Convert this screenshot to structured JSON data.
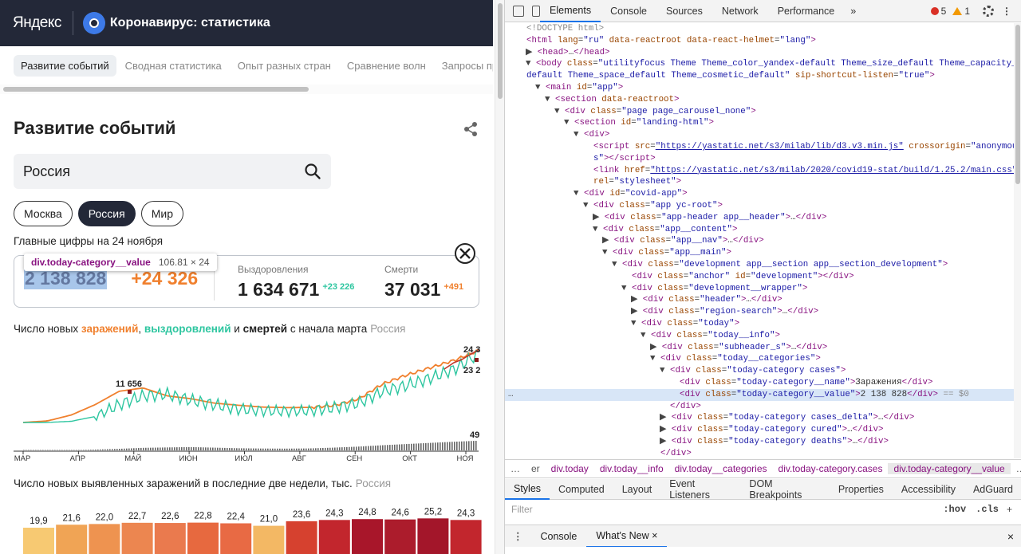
{
  "site": {
    "yandex_logo": "Яндекс",
    "title": "Коронавирус: статистика"
  },
  "tabs": [
    "Развитие событий",
    "Сводная статистика",
    "Опыт разных стран",
    "Сравнение волн",
    "Запросы про об"
  ],
  "heading": "Развитие событий",
  "search": {
    "value": "Россия"
  },
  "regions": [
    "Москва",
    "Россия",
    "Мир"
  ],
  "main_figures": "Главные цифры на 24 ноября",
  "today": {
    "cases": {
      "name": "",
      "value": "2 138 828",
      "delta": "+24 326"
    },
    "cured": {
      "name": "Выздоровления",
      "value": "1 634 671",
      "delta": "+23 226"
    },
    "deaths": {
      "name": "Смерти",
      "value": "37 031",
      "delta": "+491"
    }
  },
  "tooltip": {
    "name": "div.today-category__value",
    "size": "106.81 × 24"
  },
  "chart1_title": {
    "prefix": "Число новых ",
    "cases": "заражений",
    "sep1": ", ",
    "cured": "выздоровлений",
    "sep2": " и ",
    "deaths": "смертей",
    "suffix": " с начала марта",
    "region": "Россия"
  },
  "chart2_title": {
    "text": "Число новых выявленных заражений в последние две недели, тыс.",
    "region": "Россия"
  },
  "colors": {
    "cases": "#f0802e",
    "cured": "#2ec6a0",
    "deaths": "#c0392b",
    "bar_low": "#f7c972",
    "bar_high": "#a3162a"
  },
  "chart_data": [
    {
      "type": "line",
      "x_ticks": [
        "МАР",
        "АПР",
        "МАЙ",
        "ИЮН",
        "ИЮЛ",
        "АВГ",
        "СЕН",
        "ОКТ",
        "НОЯ"
      ],
      "annotations": [
        {
          "label": "11 656"
        },
        {
          "label": "24 3"
        },
        {
          "label": "23 2"
        },
        {
          "label": "49"
        }
      ],
      "series": [
        {
          "name": "заражений",
          "values": [
            0,
            500,
            2500,
            6000,
            10500,
            11656,
            9000,
            8000,
            6500,
            5800,
            5200,
            5000,
            5100,
            5800,
            8000,
            13000,
            16000,
            18500,
            21000,
            24326
          ]
        },
        {
          "name": "выздоровлений",
          "values": [
            0,
            0,
            400,
            2000,
            6000,
            9000,
            9500,
            7500,
            6000,
            4500,
            4000,
            3800,
            4000,
            5000,
            6500,
            10500,
            12500,
            15000,
            18000,
            23226
          ]
        },
        {
          "name": "смертей",
          "values": [
            0,
            0,
            5,
            40,
            80,
            130,
            150,
            170,
            140,
            110,
            95,
            90,
            100,
            140,
            190,
            260,
            320,
            380,
            440,
            491
          ]
        }
      ]
    },
    {
      "type": "bar",
      "values": [
        19.9,
        21.6,
        22.0,
        22.7,
        22.6,
        22.8,
        22.4,
        21.0,
        23.6,
        24.3,
        24.8,
        24.6,
        25.2,
        24.3
      ],
      "labels": [
        "19,9",
        "21,6",
        "22,0",
        "22,7",
        "22,6",
        "22,8",
        "22,4",
        "21,0",
        "23,6",
        "24,3",
        "24,8",
        "24,6",
        "25,2",
        "24,3"
      ]
    }
  ],
  "devtools": {
    "tabs": [
      "Elements",
      "Console",
      "Sources",
      "Network",
      "Performance"
    ],
    "more": "»",
    "errors": "5",
    "warnings": "1",
    "dom_lines": [
      {
        "i": 0,
        "t": "",
        "h": "<span class='cm'>&lt;!DOCTYPE html&gt;</span>"
      },
      {
        "i": 0,
        "t": "",
        "h": "<span class='tg'>&lt;html</span> <span class='at'>lang</span>=<span class='av'>\"ru\"</span> <span class='at'>data-reactroot</span> <span class='at'>data-react-helmet</span>=<span class='av'>\"lang\"</span><span class='tg'>&gt;</span>"
      },
      {
        "i": 1,
        "t": "▶",
        "h": "<span class='tg'>&lt;head&gt;</span>…<span class='tg'>&lt;/head&gt;</span>"
      },
      {
        "i": 1,
        "t": "▼",
        "h": "<span class='tg'>&lt;body</span> <span class='at'>class</span>=<span class='av'>\"utilityfocus Theme Theme_color_yandex-default Theme_size_default Theme_capacity_</span>"
      },
      {
        "i": 0,
        "t": "",
        "h": "<span class='av'>default Theme_space_default Theme_cosmetic_default\"</span> <span class='at'>sip-shortcut-listen</span>=<span class='av'>\"true\"</span><span class='tg'>&gt;</span>"
      },
      {
        "i": 2,
        "t": "▼",
        "h": "<span class='tg'>&lt;main</span> <span class='at'>id</span>=<span class='av'>\"app\"</span><span class='tg'>&gt;</span>"
      },
      {
        "i": 3,
        "t": "▼",
        "h": "<span class='tg'>&lt;section</span> <span class='at'>data-reactroot</span><span class='tg'>&gt;</span>"
      },
      {
        "i": 4,
        "t": "▼",
        "h": "<span class='tg'>&lt;div</span> <span class='at'>class</span>=<span class='av'>\"page page_carousel_none\"</span><span class='tg'>&gt;</span>"
      },
      {
        "i": 5,
        "t": "▼",
        "h": "<span class='tg'>&lt;section</span> <span class='at'>id</span>=<span class='av'>\"landing-html\"</span><span class='tg'>&gt;</span>"
      },
      {
        "i": 6,
        "t": "▼",
        "h": "<span class='tg'>&lt;div&gt;</span>"
      },
      {
        "i": 7,
        "t": "",
        "h": "<span class='tg'>&lt;script</span> <span class='at'>src</span>=<span class='lk'>\"https://yastatic.net/s3/milab/lib/d3.v3.min.js\"</span> <span class='at'>crossorigin</span>=<span class='av'>\"anonymou</span>"
      },
      {
        "i": 7,
        "t": "",
        "h": "<span class='av'>s\"</span><span class='tg'>&gt;&lt;/script&gt;</span>"
      },
      {
        "i": 7,
        "t": "",
        "h": "<span class='tg'>&lt;link</span> <span class='at'>href</span>=<span class='lk'>\"https://yastatic.net/s3/milab/2020/covid19-stat/build/1.25.2/main.css\"</span>"
      },
      {
        "i": 7,
        "t": "",
        "h": "<span class='at'>rel</span>=<span class='av'>\"stylesheet\"</span><span class='tg'>&gt;</span>"
      },
      {
        "i": 6,
        "t": "▼",
        "h": "<span class='tg'>&lt;div</span> <span class='at'>id</span>=<span class='av'>\"covid-app\"</span><span class='tg'>&gt;</span>"
      },
      {
        "i": 7,
        "t": "▼",
        "h": "<span class='tg'>&lt;div</span> <span class='at'>class</span>=<span class='av'>\"app yc-root\"</span><span class='tg'>&gt;</span>"
      },
      {
        "i": 8,
        "t": "▶",
        "h": "<span class='tg'>&lt;div</span> <span class='at'>class</span>=<span class='av'>\"app-header app__header\"</span><span class='tg'>&gt;</span>…<span class='tg'>&lt;/div&gt;</span>"
      },
      {
        "i": 8,
        "t": "▼",
        "h": "<span class='tg'>&lt;div</span> <span class='at'>class</span>=<span class='av'>\"app__content\"</span><span class='tg'>&gt;</span>"
      },
      {
        "i": 9,
        "t": "▶",
        "h": "<span class='tg'>&lt;div</span> <span class='at'>class</span>=<span class='av'>\"app__nav\"</span><span class='tg'>&gt;</span>…<span class='tg'>&lt;/div&gt;</span>"
      },
      {
        "i": 9,
        "t": "▼",
        "h": "<span class='tg'>&lt;div</span> <span class='at'>class</span>=<span class='av'>\"app__main\"</span><span class='tg'>&gt;</span>"
      },
      {
        "i": 10,
        "t": "▼",
        "h": "<span class='tg'>&lt;div</span> <span class='at'>class</span>=<span class='av'>\"development app__section app__section_development\"</span><span class='tg'>&gt;</span>"
      },
      {
        "i": 11,
        "t": "",
        "h": "<span class='tg'>&lt;div</span> <span class='at'>class</span>=<span class='av'>\"anchor\"</span> <span class='at'>id</span>=<span class='av'>\"development\"</span><span class='tg'>&gt;&lt;/div&gt;</span>"
      },
      {
        "i": 11,
        "t": "▼",
        "h": "<span class='tg'>&lt;div</span> <span class='at'>class</span>=<span class='av'>\"development__wrapper\"</span><span class='tg'>&gt;</span>"
      },
      {
        "i": 12,
        "t": "▶",
        "h": "<span class='tg'>&lt;div</span> <span class='at'>class</span>=<span class='av'>\"header\"</span><span class='tg'>&gt;</span>…<span class='tg'>&lt;/div&gt;</span>"
      },
      {
        "i": 12,
        "t": "▶",
        "h": "<span class='tg'>&lt;div</span> <span class='at'>class</span>=<span class='av'>\"region-search\"</span><span class='tg'>&gt;</span>…<span class='tg'>&lt;/div&gt;</span>"
      },
      {
        "i": 12,
        "t": "▼",
        "h": "<span class='tg'>&lt;div</span> <span class='at'>class</span>=<span class='av'>\"today\"</span><span class='tg'>&gt;</span>"
      },
      {
        "i": 13,
        "t": "▼",
        "h": "<span class='tg'>&lt;div</span> <span class='at'>class</span>=<span class='av'>\"today__info\"</span><span class='tg'>&gt;</span>"
      },
      {
        "i": 14,
        "t": "▶",
        "h": "<span class='tg'>&lt;div</span> <span class='at'>class</span>=<span class='av'>\"subheader_s\"</span><span class='tg'>&gt;</span>…<span class='tg'>&lt;/div&gt;</span>"
      },
      {
        "i": 14,
        "t": "▼",
        "h": "<span class='tg'>&lt;div</span> <span class='at'>class</span>=<span class='av'>\"today__categories\"</span><span class='tg'>&gt;</span>"
      },
      {
        "i": 15,
        "t": "▼",
        "h": "<span class='tg'>&lt;div</span> <span class='at'>class</span>=<span class='av'>\"today-category cases\"</span><span class='tg'>&gt;</span>"
      },
      {
        "i": 16,
        "t": "",
        "h": "<span class='tg'>&lt;div</span> <span class='at'>class</span>=<span class='av'>\"today-category__name\"</span><span class='tg'>&gt;</span>Заражения<span class='tg'>&lt;/div&gt;</span>"
      },
      {
        "i": 16,
        "t": "",
        "sel": true,
        "h": "<span class='tg'>&lt;div</span> <span class='at'>class</span>=<span class='av'>\"today-category__value\"</span><span class='tg'>&gt;</span>2 138 828<span class='tg'>&lt;/div&gt;</span> <span class='eq'>== $0</span>"
      },
      {
        "i": 15,
        "t": "",
        "h": "<span class='tg'>&lt;/div&gt;</span>"
      },
      {
        "i": 15,
        "t": "▶",
        "h": "<span class='tg'>&lt;div</span> <span class='at'>class</span>=<span class='av'>\"today-category cases_delta\"</span><span class='tg'>&gt;</span>…<span class='tg'>&lt;/div&gt;</span>"
      },
      {
        "i": 15,
        "t": "▶",
        "h": "<span class='tg'>&lt;div</span> <span class='at'>class</span>=<span class='av'>\"today-category cured\"</span><span class='tg'>&gt;</span>…<span class='tg'>&lt;/div&gt;</span>"
      },
      {
        "i": 15,
        "t": "▶",
        "h": "<span class='tg'>&lt;div</span> <span class='at'>class</span>=<span class='av'>\"today-category deaths\"</span><span class='tg'>&gt;</span>…<span class='tg'>&lt;/div&gt;</span>"
      },
      {
        "i": 14,
        "t": "",
        "h": "<span class='tg'>&lt;/div&gt;</span>"
      }
    ],
    "breadcrumbs": [
      "…",
      "er",
      "div.today",
      "div.today__info",
      "div.today__categories",
      "div.today-category.cases",
      "div.today-category__value",
      "…"
    ],
    "style_tabs": [
      "Styles",
      "Computed",
      "Layout",
      "Event Listeners",
      "DOM Breakpoints",
      "Properties",
      "Accessibility",
      "AdGuard"
    ],
    "filter": {
      "placeholder": "Filter",
      "hov": ":hov",
      "cls": ".cls",
      "plus": "+"
    },
    "drawer_tabs": [
      "Console",
      "What's New"
    ],
    "drawer_close": "×"
  }
}
